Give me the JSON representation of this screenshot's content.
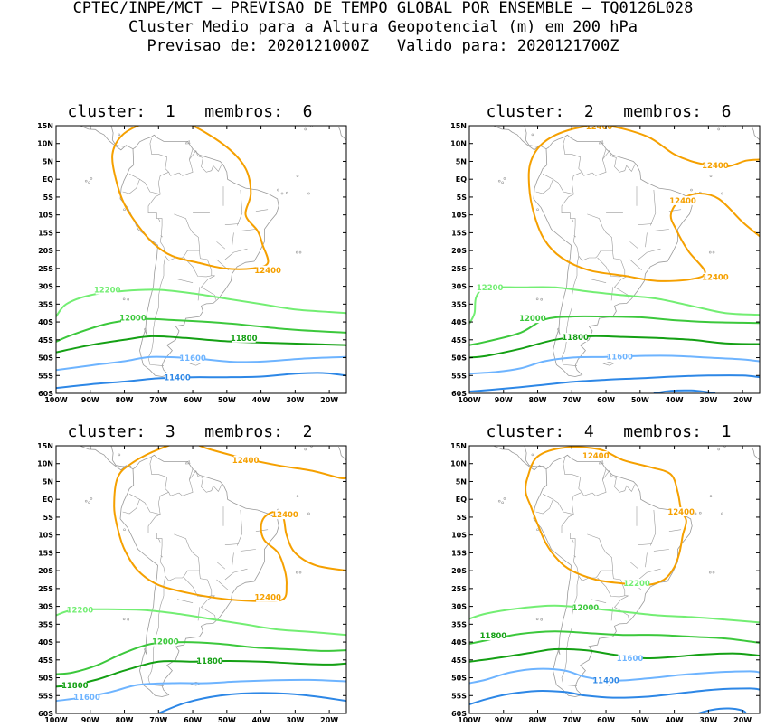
{
  "header": {
    "line1": "CPTEC/INPE/MCT — PREVISAO DE TEMPO GLOBAL POR ENSEMBLE — TQ0126L028",
    "line2": "Cluster Medio para a Altura Geopotencial (m) em 200 hPa",
    "line3": "Previsao de: 2020121000Z   Valido para: 2020121700Z"
  },
  "axes": {
    "lat_labels": [
      "15N",
      "10N",
      "5N",
      "EQ",
      "5S",
      "10S",
      "15S",
      "20S",
      "25S",
      "30S",
      "35S",
      "40S",
      "45S",
      "50S",
      "55S",
      "60S"
    ],
    "lon_labels": [
      "100W",
      "90W",
      "80W",
      "70W",
      "60W",
      "50W",
      "40W",
      "30W",
      "20W"
    ]
  },
  "colors": {
    "c12400": "#f5a000",
    "c12200": "#73ee73",
    "c12000": "#3cc83c",
    "c11800": "#14a014",
    "c11600": "#6eb4ff",
    "c11400": "#2d87e6",
    "coast": "#9a9a9a"
  },
  "panels": [
    {
      "title": "cluster:  1   membros:  6",
      "labels": [
        {
          "text": "12400",
          "color": "c12400"
        },
        {
          "text": "12200",
          "color": "c12200"
        },
        {
          "text": "12000",
          "color": "c12000"
        },
        {
          "text": "11800",
          "color": "c11800"
        },
        {
          "text": "11600",
          "color": "c11600"
        },
        {
          "text": "11400",
          "color": "c11400"
        }
      ]
    },
    {
      "title": "cluster:  2   membros:  6",
      "labels": [
        {
          "text": "12400",
          "color": "c12400"
        },
        {
          "text": "12400",
          "color": "c12400"
        },
        {
          "text": "12400",
          "color": "c12400"
        },
        {
          "text": "12400",
          "color": "c12400"
        },
        {
          "text": "12200",
          "color": "c12200"
        },
        {
          "text": "12000",
          "color": "c12000"
        },
        {
          "text": "11800",
          "color": "c11800"
        },
        {
          "text": "11600",
          "color": "c11600"
        }
      ]
    },
    {
      "title": "cluster:  3   membros:  2",
      "labels": [
        {
          "text": "12400",
          "color": "c12400"
        },
        {
          "text": "12400",
          "color": "c12400"
        },
        {
          "text": "12400",
          "color": "c12400"
        },
        {
          "text": "12200",
          "color": "c12200"
        },
        {
          "text": "12000",
          "color": "c12000"
        },
        {
          "text": "11800",
          "color": "c11800"
        },
        {
          "text": "11800",
          "color": "c11800"
        },
        {
          "text": "11600",
          "color": "c11600"
        }
      ]
    },
    {
      "title": "cluster:  4   membros:  1",
      "labels": [
        {
          "text": "12400",
          "color": "c12400"
        },
        {
          "text": "12400",
          "color": "c12400"
        },
        {
          "text": "12200",
          "color": "c12200"
        },
        {
          "text": "12000",
          "color": "c12000"
        },
        {
          "text": "11800",
          "color": "c11800"
        },
        {
          "text": "11600",
          "color": "c11600"
        },
        {
          "text": "11400",
          "color": "c11400"
        }
      ]
    }
  ]
}
